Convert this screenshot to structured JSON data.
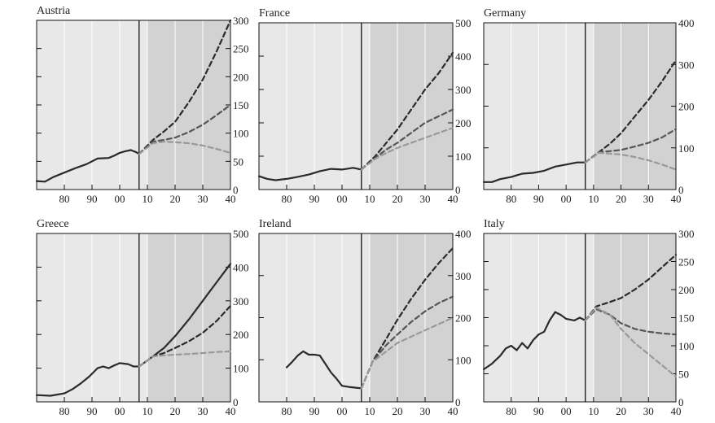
{
  "chart_data": [
    {
      "type": "line",
      "title": "Austria",
      "x_tick_labels": [
        "80",
        "90",
        "00",
        "10",
        "20",
        "30",
        "40"
      ],
      "x_ticks": [
        1980,
        1990,
        2000,
        2010,
        2020,
        2030,
        2040
      ],
      "y_ticks": [
        0,
        50,
        100,
        150,
        200,
        250,
        300
      ],
      "ylim": [
        0,
        300
      ],
      "xlim": [
        1970,
        2040
      ],
      "projection_shading_start": 2010,
      "vertical_marker": 2007,
      "series": [
        {
          "style": "solid-historical",
          "x": [
            1970,
            1973,
            1976,
            1980,
            1984,
            1988,
            1992,
            1996,
            1998,
            2000,
            2002,
            2004,
            2006,
            2007
          ],
          "values": [
            15,
            14,
            22,
            30,
            38,
            45,
            55,
            56,
            60,
            65,
            68,
            70,
            66,
            63
          ]
        },
        {
          "style": "dashed-high",
          "x": [
            2007,
            2012,
            2016,
            2020,
            2025,
            2030,
            2035,
            2040
          ],
          "values": [
            63,
            88,
            103,
            120,
            155,
            195,
            245,
            300
          ]
        },
        {
          "style": "dashed-mid",
          "x": [
            2007,
            2012,
            2016,
            2020,
            2025,
            2030,
            2035,
            2040
          ],
          "values": [
            63,
            85,
            88,
            92,
            102,
            115,
            132,
            150
          ]
        },
        {
          "style": "dashed-low",
          "x": [
            2007,
            2012,
            2016,
            2020,
            2025,
            2030,
            2035,
            2040
          ],
          "values": [
            63,
            82,
            85,
            84,
            82,
            78,
            72,
            65
          ]
        }
      ]
    },
    {
      "type": "line",
      "title": "France",
      "x_tick_labels": [
        "80",
        "90",
        "00",
        "10",
        "20",
        "30",
        "40"
      ],
      "x_ticks": [
        1980,
        1990,
        2000,
        2010,
        2020,
        2030,
        2040
      ],
      "y_ticks": [
        0,
        100,
        200,
        300,
        400,
        500
      ],
      "ylim": [
        0,
        500
      ],
      "xlim": [
        1970,
        2040
      ],
      "projection_shading_start": 2010,
      "vertical_marker": 2007,
      "series": [
        {
          "style": "solid-historical",
          "x": [
            1970,
            1973,
            1976,
            1980,
            1984,
            1988,
            1992,
            1996,
            2000,
            2004,
            2007
          ],
          "values": [
            40,
            32,
            28,
            32,
            38,
            45,
            55,
            62,
            60,
            65,
            60
          ]
        },
        {
          "style": "dashed-high",
          "x": [
            2007,
            2012,
            2016,
            2020,
            2025,
            2030,
            2035,
            2040
          ],
          "values": [
            60,
            100,
            140,
            180,
            240,
            300,
            350,
            410
          ]
        },
        {
          "style": "dashed-mid",
          "x": [
            2007,
            2012,
            2016,
            2020,
            2025,
            2030,
            2035,
            2040
          ],
          "values": [
            60,
            95,
            120,
            140,
            170,
            200,
            220,
            240
          ]
        },
        {
          "style": "dashed-low",
          "x": [
            2007,
            2012,
            2016,
            2020,
            2025,
            2030,
            2035,
            2040
          ],
          "values": [
            60,
            92,
            110,
            125,
            140,
            155,
            170,
            185
          ]
        }
      ]
    },
    {
      "type": "line",
      "title": "Germany",
      "x_tick_labels": [
        "80",
        "90",
        "00",
        "10",
        "20",
        "30",
        "40"
      ],
      "x_ticks": [
        1980,
        1990,
        2000,
        2010,
        2020,
        2030,
        2040
      ],
      "y_ticks": [
        0,
        100,
        200,
        300,
        400
      ],
      "ylim": [
        0,
        400
      ],
      "xlim": [
        1970,
        2040
      ],
      "projection_shading_start": 2010,
      "vertical_marker": 2007,
      "series": [
        {
          "style": "solid-historical",
          "x": [
            1970,
            1973,
            1976,
            1980,
            1984,
            1988,
            1992,
            1996,
            2000,
            2004,
            2007
          ],
          "values": [
            18,
            18,
            25,
            30,
            38,
            40,
            45,
            55,
            60,
            65,
            65
          ]
        },
        {
          "style": "dashed-high",
          "x": [
            2007,
            2012,
            2016,
            2020,
            2025,
            2030,
            2035,
            2040
          ],
          "values": [
            65,
            90,
            110,
            135,
            175,
            215,
            260,
            310
          ]
        },
        {
          "style": "dashed-mid",
          "x": [
            2007,
            2012,
            2016,
            2020,
            2025,
            2030,
            2035,
            2040
          ],
          "values": [
            65,
            90,
            92,
            95,
            103,
            112,
            125,
            145
          ]
        },
        {
          "style": "dashed-low",
          "x": [
            2007,
            2012,
            2016,
            2020,
            2025,
            2030,
            2035,
            2040
          ],
          "values": [
            65,
            88,
            86,
            84,
            78,
            70,
            60,
            48
          ]
        }
      ]
    },
    {
      "type": "line",
      "title": "Greece",
      "x_tick_labels": [
        "80",
        "90",
        "00",
        "10",
        "20",
        "30",
        "40"
      ],
      "x_ticks": [
        1980,
        1990,
        2000,
        2010,
        2020,
        2030,
        2040
      ],
      "y_ticks": [
        0,
        100,
        200,
        300,
        400,
        500
      ],
      "ylim": [
        0,
        500
      ],
      "xlim": [
        1970,
        2040
      ],
      "projection_shading_start": 2010,
      "vertical_marker": 2007,
      "series": [
        {
          "style": "solid-historical",
          "x": [
            1970,
            1975,
            1980,
            1983,
            1986,
            1989,
            1992,
            1994,
            1996,
            1998,
            2000,
            2003,
            2005,
            2007
          ],
          "values": [
            20,
            18,
            25,
            38,
            55,
            75,
            100,
            105,
            100,
            108,
            115,
            112,
            105,
            105
          ]
        },
        {
          "style": "solid-projection",
          "x": [
            2007,
            2012,
            2016,
            2020,
            2025,
            2030,
            2035,
            2040
          ],
          "values": [
            105,
            135,
            160,
            195,
            245,
            300,
            355,
            410
          ]
        },
        {
          "style": "dashed-high",
          "x": [
            2007,
            2012,
            2016,
            2020,
            2025,
            2030,
            2035,
            2040
          ],
          "values": [
            105,
            135,
            145,
            160,
            180,
            205,
            240,
            285
          ]
        },
        {
          "style": "dashed-low",
          "x": [
            2007,
            2012,
            2016,
            2020,
            2025,
            2030,
            2035,
            2040
          ],
          "values": [
            105,
            135,
            138,
            140,
            142,
            145,
            148,
            150
          ]
        }
      ]
    },
    {
      "type": "line",
      "title": "Ireland",
      "x_tick_labels": [
        "80",
        "90",
        "00",
        "10",
        "20",
        "30",
        "40"
      ],
      "x_ticks": [
        1980,
        1990,
        2000,
        2010,
        2020,
        2030,
        2040
      ],
      "y_ticks": [
        0,
        100,
        200,
        300,
        400
      ],
      "ylim": [
        0,
        400
      ],
      "xlim": [
        1970,
        2040
      ],
      "projection_shading_start": 2010,
      "vertical_marker": 2007,
      "series": [
        {
          "style": "solid-historical",
          "x": [
            1980,
            1982,
            1984,
            1986,
            1988,
            1990,
            1992,
            1994,
            1996,
            1998,
            2000,
            2003,
            2007
          ],
          "values": [
            82,
            95,
            110,
            120,
            112,
            112,
            110,
            90,
            70,
            55,
            38,
            35,
            32
          ]
        },
        {
          "style": "dashed-high",
          "x": [
            2007,
            2011,
            2016,
            2020,
            2025,
            2030,
            2035,
            2040
          ],
          "values": [
            32,
            95,
            150,
            195,
            245,
            290,
            330,
            365
          ]
        },
        {
          "style": "dashed-mid",
          "x": [
            2007,
            2011,
            2016,
            2020,
            2025,
            2030,
            2035,
            2040
          ],
          "values": [
            32,
            95,
            135,
            160,
            190,
            215,
            235,
            250
          ]
        },
        {
          "style": "dashed-low",
          "x": [
            2007,
            2011,
            2016,
            2020,
            2025,
            2030,
            2035,
            2040
          ],
          "values": [
            32,
            95,
            120,
            140,
            155,
            170,
            185,
            200
          ]
        }
      ]
    },
    {
      "type": "line",
      "title": "Italy",
      "x_tick_labels": [
        "80",
        "90",
        "00",
        "10",
        "20",
        "30",
        "40"
      ],
      "x_ticks": [
        1980,
        1990,
        2000,
        2010,
        2020,
        2030,
        2040
      ],
      "y_ticks": [
        0,
        50,
        100,
        150,
        200,
        250,
        300
      ],
      "ylim": [
        0,
        300
      ],
      "xlim": [
        1970,
        2040
      ],
      "projection_shading_start": 2010,
      "vertical_marker": 2007,
      "series": [
        {
          "style": "solid-historical",
          "x": [
            1970,
            1973,
            1976,
            1978,
            1980,
            1982,
            1984,
            1986,
            1988,
            1990,
            1992,
            1994,
            1996,
            1998,
            2000,
            2003,
            2005,
            2007
          ],
          "values": [
            58,
            68,
            82,
            95,
            100,
            92,
            105,
            95,
            110,
            120,
            125,
            145,
            160,
            155,
            148,
            145,
            150,
            145
          ]
        },
        {
          "style": "dashed-high",
          "x": [
            2007,
            2011,
            2016,
            2020,
            2025,
            2030,
            2035,
            2040
          ],
          "values": [
            145,
            170,
            178,
            185,
            200,
            218,
            240,
            262
          ]
        },
        {
          "style": "dashed-mid",
          "x": [
            2007,
            2011,
            2016,
            2020,
            2025,
            2030,
            2035,
            2040
          ],
          "values": [
            145,
            165,
            155,
            140,
            130,
            125,
            122,
            120
          ]
        },
        {
          "style": "dashed-low",
          "x": [
            2007,
            2011,
            2016,
            2020,
            2025,
            2030,
            2035,
            2040
          ],
          "values": [
            145,
            168,
            155,
            130,
            105,
            85,
            65,
            45
          ]
        }
      ]
    }
  ],
  "colors": {
    "plot_background": "#e8e8e8",
    "projection_background": "#d2d2d2",
    "gridline": "#ffffff",
    "historical_line": "#2a2a2a",
    "dashed_high": "#2a2a2a",
    "dashed_mid": "#555555",
    "dashed_low": "#999999",
    "vertical_marker": "#111111"
  }
}
